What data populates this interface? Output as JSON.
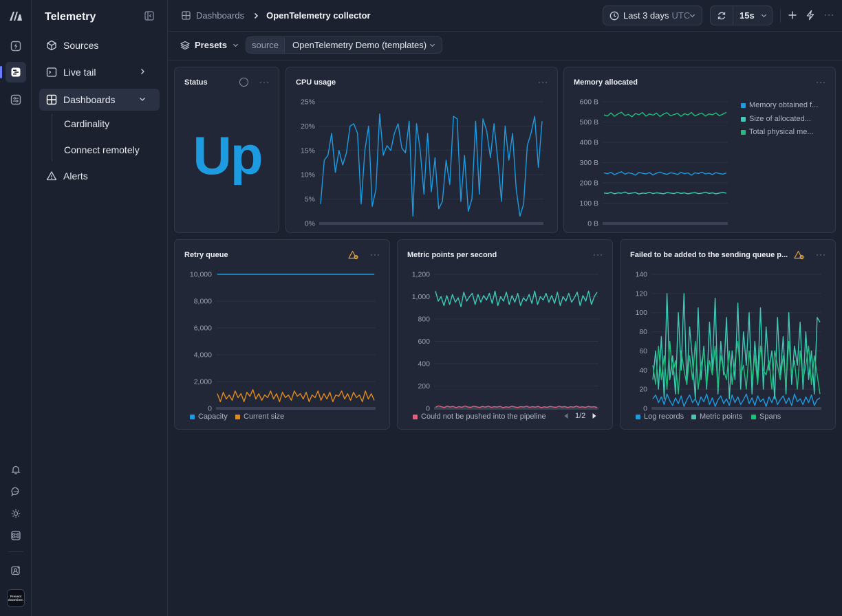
{
  "app": {
    "title": "Telemetry",
    "avatar_label": "Prevent downtime."
  },
  "sidebar": {
    "items": [
      {
        "label": "Sources"
      },
      {
        "label": "Live tail"
      },
      {
        "label": "Dashboards"
      },
      {
        "label": "Alerts"
      }
    ],
    "subitems": [
      {
        "label": "Cardinality"
      },
      {
        "label": "Connect remotely"
      }
    ]
  },
  "header": {
    "breadcrumb_root": "Dashboards",
    "breadcrumb_current": "OpenTelemetry collector",
    "time_range": "Last 3 days",
    "timezone": "UTC",
    "refresh_interval": "15s"
  },
  "filters": {
    "presets_label": "Presets",
    "source_key": "source",
    "source_value": "OpenTelemetry Demo (templates)"
  },
  "colors": {
    "accent": "#1d9be0",
    "orange": "#e08a1e",
    "teal": "#3fc9b7",
    "green": "#1fbf7a",
    "pink": "#e0607e",
    "warn": "#e8a23a"
  },
  "panels": {
    "status": {
      "title": "Status",
      "value": "Up"
    },
    "cpu": {
      "title": "CPU usage"
    },
    "memory": {
      "title": "Memory allocated"
    },
    "retry": {
      "title": "Retry queue"
    },
    "metric_points": {
      "title": "Metric points per second",
      "pager": "1/2"
    },
    "failed": {
      "title": "Failed to be added to the sending queue p..."
    }
  },
  "chart_data": [
    {
      "id": "cpu",
      "type": "line",
      "ylim": [
        0,
        25
      ],
      "yticks": [
        "0%",
        "5%",
        "10%",
        "15%",
        "20%",
        "25%"
      ],
      "series": [
        {
          "color": "#1d9be0",
          "values": [
            4,
            13,
            14,
            18.5,
            10.5,
            15,
            12,
            14.5,
            20,
            20.5,
            18.5,
            4,
            15,
            20,
            3.5,
            7,
            22.5,
            14,
            16,
            15,
            18.5,
            20.5,
            15.5,
            14.5,
            21,
            1.5,
            20.5,
            15,
            6,
            18.5,
            6.5,
            13.5,
            3,
            4.5,
            13,
            8,
            22,
            21.5,
            4.5,
            14,
            2.5,
            5,
            21,
            6,
            21.5,
            19,
            13.5,
            20.5,
            13,
            4.5,
            20,
            13,
            18.5,
            7,
            1.5,
            4,
            16,
            18.5,
            22,
            11.5,
            21
          ]
        }
      ]
    },
    {
      "id": "memory",
      "type": "line",
      "ylim": [
        0,
        600
      ],
      "yticks": [
        "0 B",
        "100 B",
        "200 B",
        "300 B",
        "400 B",
        "500 B",
        "600 B"
      ],
      "legend": [
        "Memory obtained f...",
        "Size of allocated...",
        "Total physical me..."
      ],
      "series": [
        {
          "name": "Memory obtained f...",
          "color": "#1d9be0",
          "values": [
            250,
            245,
            252,
            240,
            248,
            255,
            243,
            250,
            246,
            238,
            252,
            247,
            244,
            251,
            239,
            248,
            253,
            246,
            242,
            250,
            247,
            241,
            252,
            245,
            249,
            238,
            250,
            246,
            253,
            244,
            248,
            241,
            251,
            246,
            243,
            249
          ]
        },
        {
          "name": "Size of allocated...",
          "color": "#3fc9b7",
          "values": [
            150,
            148,
            153,
            146,
            151,
            149,
            155,
            147,
            150,
            152,
            145,
            150,
            148,
            154,
            147,
            151,
            149,
            146,
            152,
            150,
            147,
            153,
            148,
            151,
            146,
            150,
            152,
            147,
            149,
            154,
            148,
            151,
            146,
            150,
            153,
            149
          ]
        },
        {
          "name": "Total physical me...",
          "color": "#1fbf7a",
          "values": [
            535,
            530,
            545,
            528,
            540,
            548,
            532,
            538,
            526,
            542,
            536,
            547,
            529,
            540,
            534,
            544,
            527,
            539,
            546,
            531,
            537,
            543,
            528,
            541,
            535,
            547,
            530,
            538,
            544,
            529,
            540,
            536,
            545,
            531,
            539,
            548
          ]
        }
      ]
    },
    {
      "id": "retry",
      "type": "line",
      "ylim": [
        0,
        10000
      ],
      "yticks": [
        "0",
        "2,000",
        "4,000",
        "6,000",
        "8,000",
        "10,000"
      ],
      "legend": [
        "Capacity",
        "Current size"
      ],
      "series": [
        {
          "name": "Capacity",
          "color": "#1d9be0",
          "values": [
            10000,
            10000
          ]
        },
        {
          "name": "Current size",
          "color": "#e08a1e",
          "values": [
            1100,
            500,
            1200,
            700,
            1000,
            600,
            1300,
            800,
            1100,
            500,
            1200,
            900,
            1400,
            700,
            1100,
            600,
            1000,
            800,
            1300,
            700,
            1100,
            500,
            1200,
            800,
            1000,
            600,
            1300,
            900,
            1100,
            700,
            1200,
            500,
            1000,
            800,
            1300,
            600,
            1100,
            700,
            1200,
            500,
            1000,
            900,
            1300,
            700,
            1100,
            600,
            1200,
            800,
            1000,
            500,
            1300,
            700,
            1100,
            600
          ]
        }
      ]
    },
    {
      "id": "metric_points",
      "type": "line",
      "ylim": [
        0,
        1200
      ],
      "yticks": [
        "0",
        "200",
        "400",
        "600",
        "800",
        "1,000",
        "1,200"
      ],
      "legend": [
        "Could not be pushed into the pipeline"
      ],
      "series": [
        {
          "name": "teal",
          "color": "#3fc9b7",
          "values": [
            1050,
            960,
            1000,
            920,
            1010,
            930,
            1020,
            950,
            990,
            910,
            1040,
            960,
            1000,
            1030,
            930,
            1020,
            950,
            1010,
            970,
            1030,
            940,
            1050,
            920,
            1000,
            960,
            1040,
            930,
            1010,
            950,
            1030,
            920,
            990,
            960,
            1020,
            940,
            1050,
            930,
            1000,
            970,
            1030,
            950,
            1010,
            940,
            1040,
            920,
            1000,
            960,
            1030,
            950,
            990,
            1040,
            920,
            1010,
            960,
            1050,
            930,
            1000,
            1040
          ]
        },
        {
          "name": "Could not be pushed into the pipeline",
          "color": "#e0607e",
          "values": [
            10,
            22,
            15,
            8,
            20,
            12,
            18,
            7,
            16,
            10,
            21,
            13,
            9,
            19,
            14,
            8,
            17,
            11,
            20,
            9,
            15,
            12,
            18,
            7,
            14,
            10,
            19,
            13,
            8,
            16,
            12,
            20,
            9,
            15,
            11,
            18,
            7,
            14,
            10,
            17,
            13,
            9,
            19,
            12,
            16,
            8,
            15,
            11,
            20,
            10,
            14,
            9,
            17,
            12,
            15,
            8
          ]
        }
      ]
    },
    {
      "id": "failed",
      "type": "line",
      "ylim": [
        0,
        140
      ],
      "yticks": [
        "0",
        "20",
        "40",
        "60",
        "80",
        "100",
        "120",
        "140"
      ],
      "legend": [
        "Log records",
        "Metric points",
        "Spans"
      ],
      "series": [
        {
          "name": "Log records",
          "color": "#1d9be0",
          "values": [
            10,
            14,
            6,
            12,
            4,
            15,
            8,
            3,
            11,
            5,
            13,
            2,
            9,
            14,
            6,
            10,
            3,
            12,
            7,
            15,
            4,
            11,
            2,
            9,
            13,
            5,
            10,
            3,
            14,
            6,
            12,
            4,
            9,
            15,
            5,
            11,
            3,
            13,
            7,
            10,
            2,
            12,
            6,
            14,
            4,
            9,
            13,
            5,
            11,
            3,
            15,
            7,
            10,
            4,
            12,
            6,
            14,
            3,
            9,
            11
          ]
        },
        {
          "name": "Metric points",
          "color": "#3fc9b7",
          "values": [
            30,
            60,
            20,
            75,
            10,
            120,
            30,
            55,
            15,
            100,
            40,
            120,
            25,
            85,
            50,
            10,
            105,
            30,
            65,
            20,
            90,
            40,
            115,
            15,
            70,
            35,
            95,
            10,
            60,
            30,
            110,
            20,
            80,
            45,
            100,
            15,
            70,
            30,
            105,
            20,
            85,
            40,
            60,
            10,
            95,
            35,
            75,
            15,
            100,
            25,
            65,
            45,
            90,
            20,
            80,
            30,
            60,
            15,
            95,
            90
          ]
        },
        {
          "name": "Spans",
          "color": "#1fbf7a",
          "values": [
            45,
            25,
            65,
            30,
            55,
            20,
            70,
            35,
            50,
            15,
            60,
            40,
            25,
            55,
            30,
            70,
            20,
            45,
            60,
            25,
            50,
            35,
            65,
            20,
            55,
            40,
            30,
            60,
            25,
            50,
            70,
            35,
            45,
            20,
            60,
            30,
            55,
            25,
            65,
            40,
            35,
            50,
            20,
            60,
            45,
            30,
            55,
            25,
            70,
            35,
            50,
            20,
            60,
            30,
            45,
            65,
            25,
            55,
            35,
            15
          ]
        }
      ]
    }
  ]
}
